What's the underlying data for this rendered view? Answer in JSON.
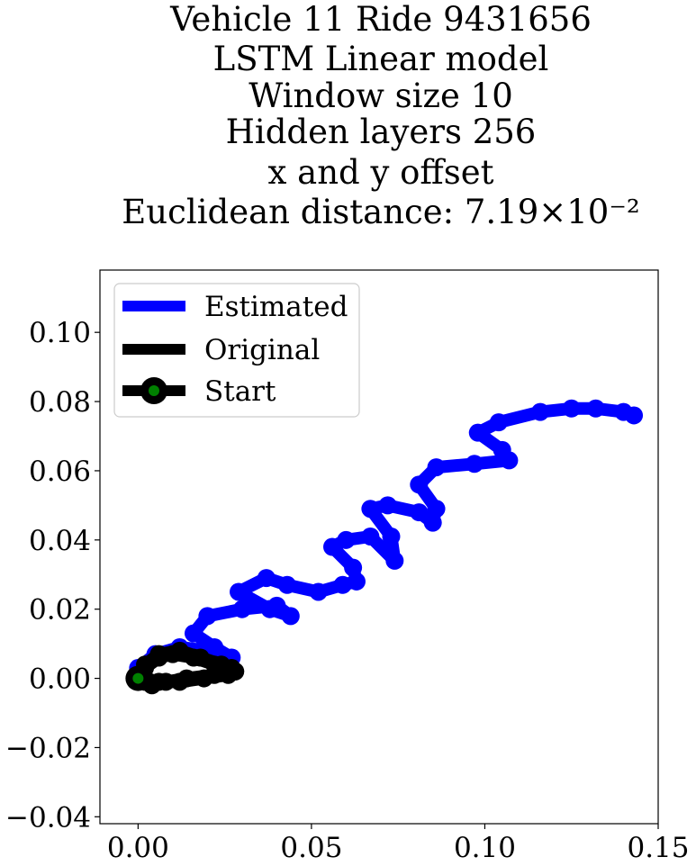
{
  "chart_data": {
    "type": "line",
    "title_lines": [
      "Vehicle 11 Ride 9431656",
      "LSTM Linear model",
      "Window size 10",
      "Hidden layers 256",
      "x and y offset",
      "Euclidean distance: 7.19×10⁻²"
    ],
    "xlabel": "",
    "ylabel": "",
    "xlim": [
      -0.011,
      0.15
    ],
    "ylim": [
      -0.042,
      0.118
    ],
    "xticks": [
      0.0,
      0.05,
      0.1,
      0.15
    ],
    "xtick_labels": [
      "0.00",
      "0.05",
      "0.10",
      "0.15"
    ],
    "yticks": [
      -0.04,
      -0.02,
      0.0,
      0.02,
      0.04,
      0.06,
      0.08,
      0.1
    ],
    "ytick_labels": [
      "−0.04",
      "−0.02",
      "0.00",
      "0.02",
      "0.04",
      "0.06",
      "0.08",
      "0.10"
    ],
    "grid": false,
    "legend": {
      "position": "upper-left",
      "entries": [
        "Estimated",
        "Original",
        "Start"
      ]
    },
    "series": [
      {
        "name": "Estimated",
        "color": "#0000ff",
        "x": [
          0.0,
          0.005,
          0.012,
          0.02,
          0.027,
          0.022,
          0.016,
          0.02,
          0.03,
          0.04,
          0.044,
          0.038,
          0.029,
          0.037,
          0.043,
          0.052,
          0.059,
          0.063,
          0.062,
          0.056,
          0.06,
          0.067,
          0.074,
          0.073,
          0.067,
          0.072,
          0.081,
          0.085,
          0.086,
          0.081,
          0.086,
          0.097,
          0.107,
          0.105,
          0.098,
          0.104,
          0.116,
          0.125,
          0.132,
          0.14,
          0.143
        ],
        "y": [
          0.003,
          0.007,
          0.009,
          0.008,
          0.006,
          0.009,
          0.013,
          0.018,
          0.02,
          0.021,
          0.018,
          0.02,
          0.025,
          0.029,
          0.027,
          0.025,
          0.027,
          0.028,
          0.032,
          0.038,
          0.04,
          0.041,
          0.034,
          0.041,
          0.049,
          0.05,
          0.048,
          0.045,
          0.049,
          0.056,
          0.061,
          0.062,
          0.063,
          0.066,
          0.071,
          0.074,
          0.077,
          0.078,
          0.078,
          0.077,
          0.076
        ]
      },
      {
        "name": "Original",
        "color": "#000000",
        "x": [
          0.0,
          0.002,
          0.006,
          0.01,
          0.016,
          0.022,
          0.027,
          0.028,
          0.022,
          0.014,
          0.008,
          0.004,
          0.002,
          0.0,
          0.002,
          0.006,
          0.012,
          0.018,
          0.024,
          0.028,
          0.026,
          0.019,
          0.012,
          0.006,
          0.002,
          0.0
        ],
        "y": [
          0.0,
          0.003,
          0.006,
          0.007,
          0.006,
          0.004,
          0.003,
          0.002,
          0.001,
          0.0,
          -0.001,
          -0.002,
          -0.001,
          0.001,
          0.004,
          0.007,
          0.008,
          0.006,
          0.004,
          0.002,
          0.001,
          0.0,
          -0.001,
          -0.001,
          0.0,
          0.0
        ]
      }
    ],
    "start_point": {
      "name": "Start",
      "x": 0.0,
      "y": 0.0,
      "color": "#008000"
    }
  }
}
